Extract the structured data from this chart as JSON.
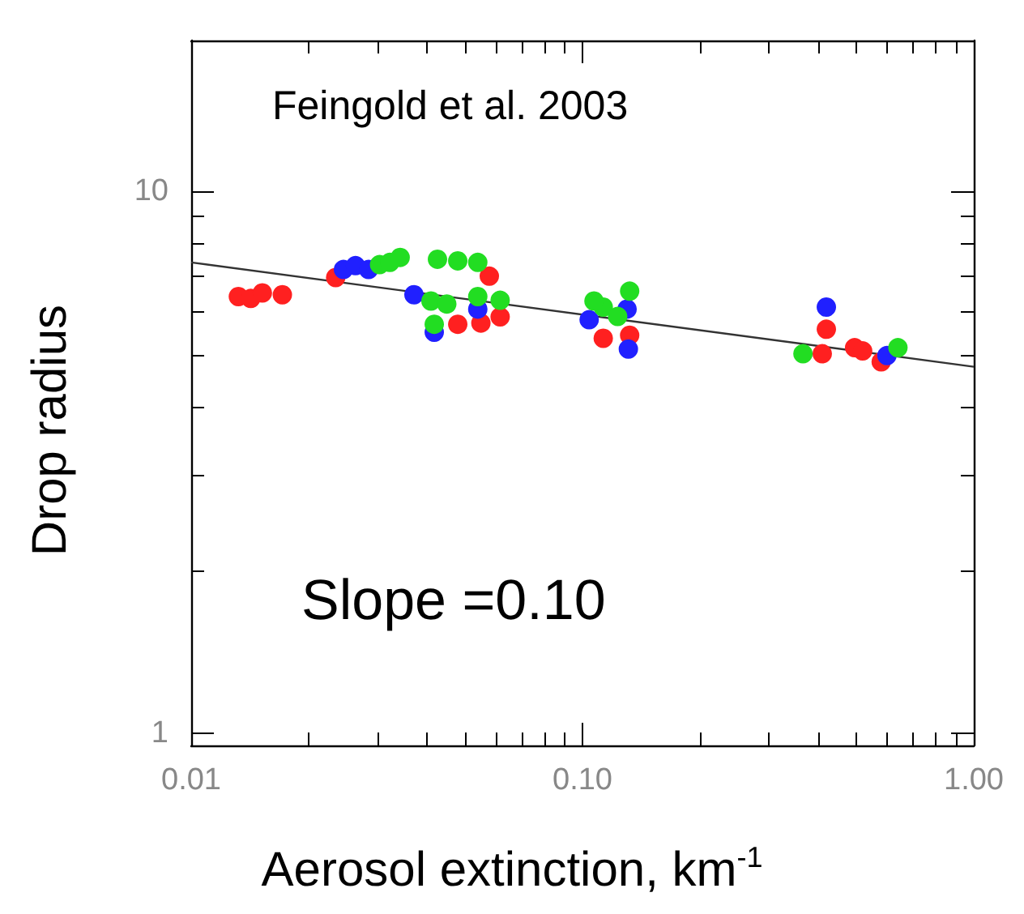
{
  "chart_data": {
    "type": "scatter",
    "xlabel": "Aerosol extinction, km$^{-1}$",
    "ylabel": "Drop radius",
    "annotations": [
      "Feingold et al. 2003",
      "Slope =0.10"
    ],
    "log": "xy",
    "xlim": [
      0.01,
      1
    ],
    "xticks": [
      {
        "value": 0.01,
        "label": "0.01"
      },
      {
        "value": 0.1,
        "label": "0.10"
      },
      {
        "value": 1,
        "label": "1.00"
      }
    ],
    "ylim": [
      0.95,
      19
    ],
    "yticks": [
      1,
      10
    ],
    "grid": false,
    "marker": "circle",
    "series": [
      {
        "color": "#ff2020",
        "x": [
          0.0132,
          0.0142,
          0.0152,
          0.0171,
          0.0234,
          0.0578,
          0.048,
          0.055,
          0.0616,
          0.113,
          0.132,
          0.41,
          0.42,
          0.496,
          0.52,
          0.58
        ],
        "values": [
          6.4,
          6.35,
          6.5,
          6.45,
          6.94,
          6.98,
          5.69,
          5.72,
          5.87,
          5.36,
          5.43,
          5.02,
          5.57,
          5.15,
          5.08,
          4.85
        ]
      },
      {
        "color": "#2020ff",
        "x": [
          0.0245,
          0.0263,
          0.0284,
          0.0371,
          0.0418,
          0.054,
          0.104,
          0.13,
          0.131,
          0.42,
          0.6
        ],
        "values": [
          7.18,
          7.3,
          7.18,
          6.45,
          5.5,
          6.07,
          5.8,
          6.07,
          5.12,
          6.12,
          4.98
        ]
      },
      {
        "color": "#22dd22",
        "x": [
          0.0303,
          0.0322,
          0.0342,
          0.0426,
          0.048,
          0.054,
          0.041,
          0.0418,
          0.045,
          0.054,
          0.0616,
          0.113,
          0.107,
          0.132,
          0.123,
          0.366,
          0.64
        ],
        "values": [
          7.33,
          7.4,
          7.56,
          7.5,
          7.45,
          7.4,
          6.28,
          5.69,
          6.2,
          6.4,
          6.3,
          6.12,
          6.28,
          6.55,
          5.88,
          5.02,
          5.15
        ]
      },
      {
        "type": "line",
        "color": "#333333",
        "marker": "none",
        "x": [
          0.01,
          1
        ],
        "values": [
          7.4,
          4.75
        ]
      }
    ]
  }
}
